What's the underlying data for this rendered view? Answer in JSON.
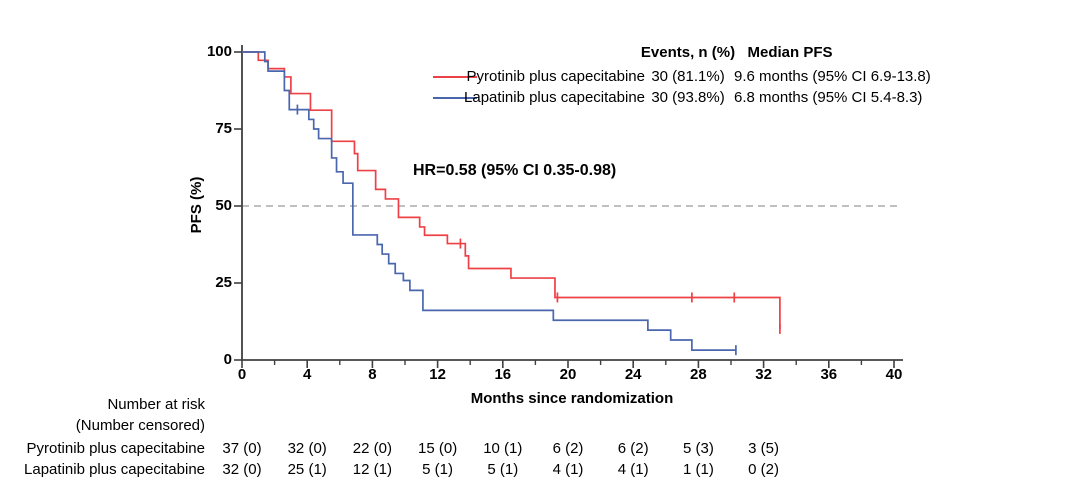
{
  "colors": {
    "pyrotinib": "#ee4145",
    "lapatinib": "#4a66ae",
    "axis": "#404040",
    "reference_dash": "#ababab",
    "text": "#000000"
  },
  "legend": {
    "events_header": "Events, n (%)",
    "median_header": "Median PFS",
    "rows": [
      {
        "label": "Pyrotinib plus capecitabine",
        "events": "30 (81.1%)",
        "median": "9.6 months (95% CI 6.9-13.8)"
      },
      {
        "label": "Lapatinib plus capecitabine",
        "events": "30 (93.8%)",
        "median": "6.8 months (95% CI 5.4-8.3)"
      }
    ]
  },
  "annotation": {
    "hr_text": "HR=0.58 (95% CI 0.35-0.98)"
  },
  "chart_data": {
    "type": "line",
    "subtype": "kaplan-meier-step",
    "title": "",
    "xlabel": "Months since randomization",
    "ylabel": "PFS (%)",
    "xlim": [
      0,
      40
    ],
    "ylim": [
      0,
      100
    ],
    "x_major_ticks": [
      0,
      4,
      8,
      12,
      16,
      20,
      24,
      28,
      32,
      36,
      40
    ],
    "x_minor_ticks": [
      2,
      6,
      10,
      14,
      18,
      22,
      26,
      30,
      34,
      38
    ],
    "y_ticks": [
      0,
      25,
      50,
      75,
      100
    ],
    "grid": false,
    "legend_position": "top-right",
    "reference_line": {
      "y": 50,
      "style": "dashed"
    },
    "series": [
      {
        "name": "Pyrotinib plus capecitabine",
        "color_key": "pyrotinib",
        "steps": [
          [
            0,
            100
          ],
          [
            1.0,
            97.3
          ],
          [
            1.6,
            94.6
          ],
          [
            2.6,
            91.9
          ],
          [
            3.0,
            86.5
          ],
          [
            4.2,
            81.1
          ],
          [
            5.5,
            71.0
          ],
          [
            6.9,
            67.0
          ],
          [
            7.1,
            61.5
          ],
          [
            8.2,
            55.4
          ],
          [
            8.8,
            52.3
          ],
          [
            9.6,
            46.3
          ],
          [
            10.9,
            43.2
          ],
          [
            11.2,
            40.5
          ],
          [
            12.6,
            37.8
          ],
          [
            13.7,
            33.8
          ],
          [
            13.9,
            29.7
          ],
          [
            16.5,
            26.6
          ],
          [
            19.2,
            20.3
          ],
          [
            33.0,
            10.1
          ]
        ],
        "end_month": 33.0,
        "censor_marks": [
          [
            13.4,
            37.8
          ],
          [
            19.35,
            20.3
          ],
          [
            27.6,
            20.3
          ],
          [
            30.2,
            20.3
          ],
          [
            33.0,
            10.1
          ]
        ]
      },
      {
        "name": "Lapatinib plus capecitabine",
        "color_key": "lapatinib",
        "steps": [
          [
            0,
            100
          ],
          [
            1.4,
            96.9
          ],
          [
            1.6,
            93.8
          ],
          [
            2.6,
            87.5
          ],
          [
            2.9,
            81.3
          ],
          [
            4.1,
            78.1
          ],
          [
            4.4,
            75.0
          ],
          [
            4.7,
            71.9
          ],
          [
            5.5,
            65.6
          ],
          [
            5.8,
            61.1
          ],
          [
            6.2,
            57.4
          ],
          [
            6.8,
            40.6
          ],
          [
            8.3,
            37.5
          ],
          [
            8.6,
            34.4
          ],
          [
            9.0,
            31.3
          ],
          [
            9.4,
            28.1
          ],
          [
            9.9,
            25.8
          ],
          [
            10.3,
            22.6
          ],
          [
            11.1,
            16.1
          ],
          [
            19.1,
            12.9
          ],
          [
            24.9,
            9.7
          ],
          [
            26.3,
            6.5
          ],
          [
            27.6,
            3.2
          ]
        ],
        "end_month": 30.3,
        "censor_marks": [
          [
            3.4,
            81.3
          ],
          [
            30.3,
            3.2
          ]
        ]
      }
    ]
  },
  "risk_table": {
    "header_line1": "Number at risk",
    "header_line2": "(Number censored)",
    "months": [
      0,
      4,
      8,
      12,
      16,
      20,
      24,
      28,
      32
    ],
    "rows": [
      {
        "label": "Pyrotinib plus capecitabine",
        "values": [
          "37 (0)",
          "32 (0)",
          "22 (0)",
          "15 (0)",
          "10 (1)",
          "6 (2)",
          "6 (2)",
          "5 (3)",
          "3 (5)"
        ]
      },
      {
        "label": "Lapatinib plus capecitabine",
        "values": [
          "32 (0)",
          "25 (1)",
          "12 (1)",
          "5 (1)",
          "5 (1)",
          "4 (1)",
          "4 (1)",
          "1 (1)",
          "0 (2)"
        ]
      }
    ]
  }
}
